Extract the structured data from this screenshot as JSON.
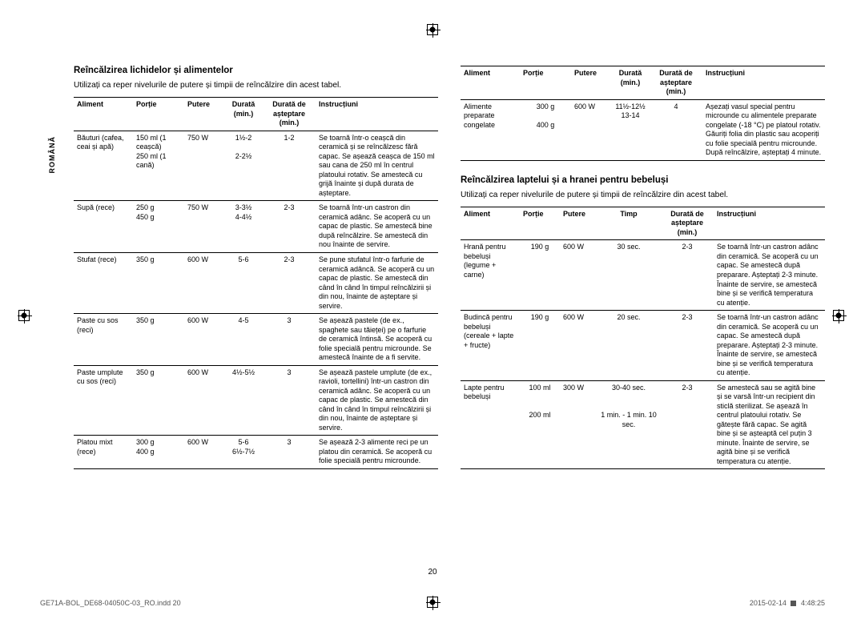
{
  "lang_tab": "ROMÂNĂ",
  "page_number": "20",
  "footer_left": "GE71A-BOL_DE68-04050C-03_RO.indd   20",
  "footer_right_date": "2015-02-14",
  "footer_right_time": "4:48:25",
  "left": {
    "title": "Reîncălzirea lichidelor și alimentelor",
    "subtitle": "Utilizați ca reper nivelurile de putere și timpii de reîncălzire din acest tabel.",
    "head": {
      "aliment": "Aliment",
      "portie": "Porție",
      "putere": "Putere",
      "durata": "Durată (min.)",
      "asteptare": "Durată de așteptare (min.)",
      "instr": "Instrucțiuni"
    },
    "rows": [
      {
        "aliment": "Băuturi (cafea, ceai și apă)",
        "portie": "150 ml (1 ceașcă)\n250 ml (1 cană)",
        "putere": "750 W",
        "durata": "1½-2\n\n2-2½",
        "asteptare": "1-2",
        "instr": "Se toarnă într-o ceașcă din ceramică și se reîncălzesc fără capac. Se așează ceașca de 150 ml sau cana de 250 ml în centrul platoului rotativ. Se amestecă cu grijă înainte și după durata de așteptare."
      },
      {
        "aliment": "Supă (rece)",
        "portie": "250 g\n450 g",
        "putere": "750 W",
        "durata": "3-3½\n4-4½",
        "asteptare": "2-3",
        "instr": "Se toarnă într-un castron din ceramică adânc. Se acoperă cu un capac de plastic. Se amestecă bine după reîncălzire. Se amestecă din nou înainte de servire."
      },
      {
        "aliment": "Stufat (rece)",
        "portie": "350 g",
        "putere": "600 W",
        "durata": "5-6",
        "asteptare": "2-3",
        "instr": "Se pune stufatul într-o farfurie de ceramică adâncă. Se acoperă cu un capac de plastic. Se amestecă din când în când în timpul reîncălzirii și din nou, înainte de așteptare și servire."
      },
      {
        "aliment": "Paste cu sos (reci)",
        "portie": "350 g",
        "putere": "600 W",
        "durata": "4-5",
        "asteptare": "3",
        "instr": "Se așează pastele (de ex., spaghete sau tăieței) pe o farfurie de ceramică întinsă. Se acoperă cu folie specială pentru microunde. Se amestecă înainte de a fi servite."
      },
      {
        "aliment": "Paste umplute cu sos (reci)",
        "portie": "350 g",
        "putere": "600 W",
        "durata": "4½-5½",
        "asteptare": "3",
        "instr": "Se așează pastele umplute (de ex., ravioli, tortellini) într-un castron din ceramică adânc. Se acoperă cu un capac de plastic. Se amestecă din când în când în timpul reîncălzirii și din nou, înainte de așteptare și servire."
      },
      {
        "aliment": "Platou mixt (rece)",
        "portie": "300 g\n400 g",
        "putere": "600 W",
        "durata": "5-6\n6½-7½",
        "asteptare": "3",
        "instr": "Se așează 2-3 alimente reci pe un platou din ceramică. Se acoperă cu folie specială pentru microunde."
      }
    ]
  },
  "right_top": {
    "head": {
      "aliment": "Aliment",
      "portie": "Porție",
      "putere": "Putere",
      "durata": "Durată (min.)",
      "asteptare": "Durată de așteptare (min.)",
      "instr": "Instrucțiuni"
    },
    "rows": [
      {
        "aliment": "Alimente preparate congelate",
        "portie": "300 g\n\n400 g",
        "putere": "600 W",
        "durata": "11½-12½\n13-14",
        "asteptare": "4",
        "instr": "Așezați vasul special pentru microunde cu alimentele preparate congelate (-18 °C) pe platoul rotativ. Găuriți folia din plastic sau acoperiți cu folie specială pentru microunde. După reîncălzire, așteptați 4 minute."
      }
    ]
  },
  "right_bottom": {
    "title": "Reîncălzirea laptelui și a hranei pentru bebeluși",
    "subtitle": "Utilizați ca reper nivelurile de putere și timpii de reîncălzire din acest tabel.",
    "head": {
      "aliment": "Aliment",
      "portie": "Porție",
      "putere": "Putere",
      "timp": "Timp",
      "asteptare": "Durată de așteptare (min.)",
      "instr": "Instrucțiuni"
    },
    "rows": [
      {
        "aliment": "Hrană pentru bebeluși (legume + carne)",
        "portie": "190 g",
        "putere": "600 W",
        "timp": "30 sec.",
        "asteptare": "2-3",
        "instr": "Se toarnă într-un castron adânc din ceramică. Se acoperă cu un capac. Se amestecă după preparare. Așteptați 2-3 minute. Înainte de servire, se amestecă bine și se verifică temperatura cu atenție."
      },
      {
        "aliment": "Budincă pentru bebeluși (cereale + lapte + fructe)",
        "portie": "190 g",
        "putere": "600 W",
        "timp": "20 sec.",
        "asteptare": "2-3",
        "instr": "Se toarnă într-un castron adânc din ceramică. Se acoperă cu un capac. Se amestecă după preparare. Așteptați 2-3 minute. Înainte de servire, se amestecă bine și se verifică temperatura cu atenție."
      },
      {
        "aliment": "Lapte pentru bebeluși",
        "portie": "100 ml\n\n\n200 ml",
        "putere": "300 W",
        "timp": "30-40 sec.\n\n\n1 min. - 1 min. 10 sec.",
        "asteptare": "2-3",
        "instr": "Se amestecă sau se agită bine și se varsă într-un recipient din sticlă sterilizat. Se așează în centrul platoului rotativ. Se gătește fără capac. Se agită bine și se așteaptă cel puțin 3 minute. Înainte de servire, se agită bine și se verifică temperatura cu atenție."
      }
    ]
  }
}
